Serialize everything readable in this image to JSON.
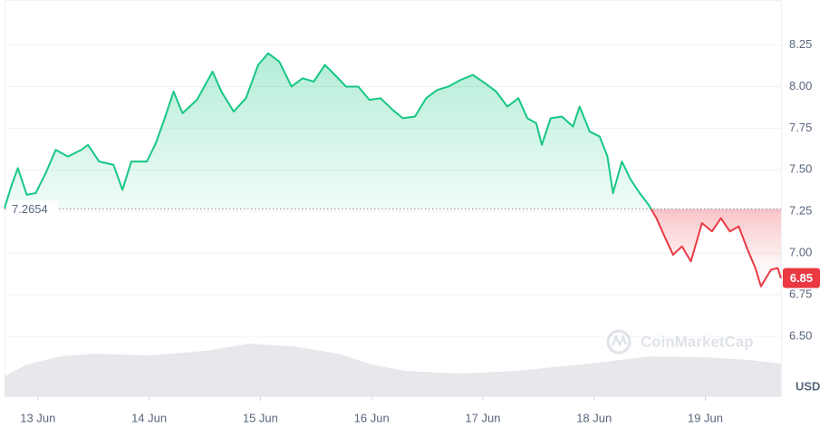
{
  "chart_data": {
    "type": "line",
    "x": [
      12.7,
      12.76,
      12.82,
      12.9,
      12.98,
      13.07,
      13.16,
      13.27,
      13.39,
      13.45,
      13.55,
      13.68,
      13.76,
      13.84,
      13.98,
      14.06,
      14.14,
      14.22,
      14.3,
      14.43,
      14.57,
      14.65,
      14.76,
      14.87,
      14.98,
      15.07,
      15.17,
      15.28,
      15.38,
      15.48,
      15.58,
      15.67,
      15.77,
      15.88,
      15.98,
      16.08,
      16.19,
      16.28,
      16.39,
      16.49,
      16.59,
      16.69,
      16.8,
      16.91,
      17.02,
      17.12,
      17.22,
      17.32,
      17.4,
      17.48,
      17.53,
      17.61,
      17.71,
      17.81,
      17.87,
      17.96,
      18.05,
      18.12,
      18.17,
      18.25,
      18.33,
      18.41,
      18.49,
      18.56,
      18.64,
      18.71,
      18.79,
      18.87,
      18.97,
      19.06,
      19.14,
      19.22,
      19.3,
      19.38,
      19.45,
      19.5,
      19.59,
      19.65,
      19.68
    ],
    "series": [
      {
        "values": [
          7.27,
          7.4,
          7.51,
          7.35,
          7.36,
          7.48,
          7.62,
          7.58,
          7.62,
          7.65,
          7.55,
          7.53,
          7.38,
          7.55,
          7.55,
          7.66,
          7.81,
          7.97,
          7.84,
          7.92,
          8.09,
          7.97,
          7.85,
          7.93,
          8.13,
          8.2,
          8.15,
          8.0,
          8.05,
          8.03,
          8.13,
          8.07,
          8.0,
          8.0,
          7.92,
          7.93,
          7.86,
          7.81,
          7.82,
          7.93,
          7.98,
          8.0,
          8.04,
          8.07,
          8.02,
          7.97,
          7.88,
          7.93,
          7.81,
          7.78,
          7.65,
          7.81,
          7.82,
          7.76,
          7.88,
          7.73,
          7.7,
          7.58,
          7.36,
          7.55,
          7.44,
          7.36,
          7.29,
          7.21,
          7.09,
          6.99,
          7.04,
          6.95,
          7.18,
          7.13,
          7.21,
          7.13,
          7.16,
          7.02,
          6.91,
          6.8,
          6.9,
          6.91,
          6.85
        ],
        "color": "#16c784",
        "color_below": "#ea3943"
      }
    ],
    "baseline": 7.2654,
    "ylim": [
      6.14,
      8.52
    ],
    "yticks": [
      {
        "value": 6.5,
        "label": "6.50"
      },
      6.75,
      {
        "value": 7,
        "label": "7.00"
      },
      7.25,
      {
        "value": 7.5,
        "label": "7.50"
      },
      7.75,
      {
        "value": 8,
        "label": "8.00"
      },
      8.25
    ],
    "xlim": [
      12.7,
      19.68
    ],
    "xticks": [
      {
        "value": 13,
        "label": "13 Jun"
      },
      {
        "value": 14,
        "label": "14 Jun"
      },
      {
        "value": 15,
        "label": "15 Jun"
      },
      {
        "value": 16,
        "label": "16 Jun"
      },
      {
        "value": 17,
        "label": "17 Jun"
      },
      {
        "value": 18,
        "label": "18 Jun"
      },
      {
        "value": 19,
        "label": "19 Jun"
      }
    ],
    "ylabel": "USD",
    "grid": true,
    "volume": {
      "x": [
        12.7,
        12.9,
        13.2,
        13.5,
        14.0,
        14.5,
        14.9,
        15.3,
        15.7,
        16.0,
        16.3,
        16.8,
        17.3,
        17.8,
        18.1,
        18.5,
        19.0,
        19.4,
        19.68
      ],
      "values": [
        22,
        35,
        44,
        47,
        45,
        50,
        58,
        55,
        47,
        35,
        28,
        25,
        28,
        34,
        38,
        44,
        43,
        40,
        36
      ],
      "color": "#e6e8ec",
      "y2lim": [
        0,
        100
      ]
    },
    "watermark": "CoinMarketCap"
  }
}
